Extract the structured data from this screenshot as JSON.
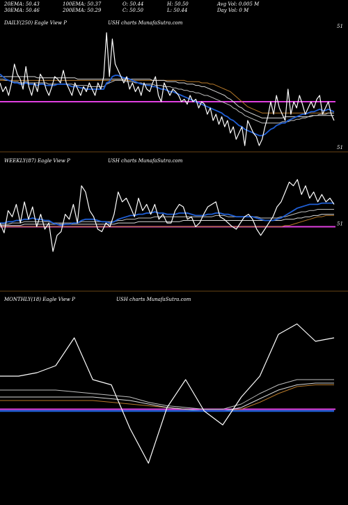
{
  "header": {
    "line1": [
      {
        "label": "20EMA: 50.43"
      },
      {
        "label": "100EMA: 50.37"
      },
      {
        "label": "O: 50.44"
      },
      {
        "label": "H: 50.50"
      },
      {
        "label": "Avg Vol: 0.005 M"
      }
    ],
    "line2": [
      {
        "label": "30EMA: 50.46"
      },
      {
        "label": "200EMA: 50.29"
      },
      {
        "label": "C: 50.50"
      },
      {
        "label": "L: 50.44"
      },
      {
        "label": "Day Vol: 0  M"
      }
    ]
  },
  "colors": {
    "price": "#ffffff",
    "ema_short": "#1f5fd6",
    "ema_mid": "#bfbfbf",
    "ema_long": "#d9d9d9",
    "ema_200": "#b87a2a",
    "baseline": "#e040e0",
    "separator": "#8a5a1a",
    "text": "#ffffff"
  },
  "chart_data": [
    {
      "type": "line",
      "title_left": "DAILY(250) Eagle   View  P",
      "title_right": "USH charts MunafaSutra.com",
      "right_tick_labels": [
        "51",
        "51"
      ],
      "price": [
        0.55,
        0.48,
        0.52,
        0.45,
        0.55,
        0.7,
        0.62,
        0.58,
        0.5,
        0.68,
        0.52,
        0.45,
        0.55,
        0.48,
        0.62,
        0.58,
        0.5,
        0.45,
        0.52,
        0.6,
        0.58,
        0.55,
        0.65,
        0.55,
        0.5,
        0.45,
        0.55,
        0.5,
        0.45,
        0.52,
        0.48,
        0.55,
        0.5,
        0.45,
        0.55,
        0.5,
        0.6,
        0.95,
        0.6,
        0.9,
        0.7,
        0.65,
        0.6,
        0.55,
        0.6,
        0.5,
        0.55,
        0.48,
        0.52,
        0.45,
        0.55,
        0.5,
        0.48,
        0.55,
        0.6,
        0.45,
        0.4,
        0.55,
        0.5,
        0.45,
        0.5,
        0.48,
        0.45,
        0.4,
        0.42,
        0.38,
        0.45,
        0.4,
        0.42,
        0.35,
        0.4,
        0.38,
        0.3,
        0.35,
        0.25,
        0.3,
        0.22,
        0.28,
        0.2,
        0.25,
        0.15,
        0.2,
        0.1,
        0.15,
        0.2,
        0.05,
        0.25,
        0.2,
        0.15,
        0.12,
        0.05,
        0.1,
        0.2,
        0.28,
        0.4,
        0.3,
        0.45,
        0.35,
        0.3,
        0.25,
        0.5,
        0.3,
        0.4,
        0.35,
        0.45,
        0.38,
        0.3,
        0.35,
        0.4,
        0.35,
        0.42,
        0.45,
        0.3,
        0.35,
        0.4,
        0.3,
        0.25
      ],
      "ema_short": [
        0.62,
        0.6,
        0.58,
        0.57,
        0.56,
        0.55,
        0.55,
        0.54,
        0.54,
        0.55,
        0.54,
        0.54,
        0.54,
        0.53,
        0.54,
        0.54,
        0.53,
        0.53,
        0.53,
        0.53,
        0.54,
        0.54,
        0.54,
        0.54,
        0.53,
        0.52,
        0.52,
        0.52,
        0.51,
        0.51,
        0.5,
        0.5,
        0.5,
        0.5,
        0.5,
        0.5,
        0.5,
        0.55,
        0.56,
        0.6,
        0.61,
        0.61,
        0.6,
        0.59,
        0.59,
        0.58,
        0.57,
        0.56,
        0.55,
        0.54,
        0.54,
        0.53,
        0.53,
        0.52,
        0.52,
        0.51,
        0.5,
        0.5,
        0.49,
        0.48,
        0.48,
        0.47,
        0.46,
        0.45,
        0.44,
        0.43,
        0.42,
        0.41,
        0.4,
        0.39,
        0.38,
        0.37,
        0.36,
        0.35,
        0.34,
        0.33,
        0.32,
        0.31,
        0.29,
        0.28,
        0.26,
        0.25,
        0.23,
        0.21,
        0.2,
        0.18,
        0.17,
        0.16,
        0.15,
        0.14,
        0.13,
        0.13,
        0.14,
        0.16,
        0.18,
        0.19,
        0.21,
        0.22,
        0.23,
        0.23,
        0.25,
        0.26,
        0.27,
        0.28,
        0.29,
        0.3,
        0.3,
        0.31,
        0.32,
        0.32,
        0.33,
        0.34,
        0.33,
        0.33,
        0.34,
        0.33,
        0.32
      ],
      "ema_mid": [
        0.58,
        0.58,
        0.57,
        0.57,
        0.56,
        0.56,
        0.56,
        0.55,
        0.55,
        0.56,
        0.55,
        0.55,
        0.55,
        0.55,
        0.55,
        0.55,
        0.55,
        0.54,
        0.54,
        0.54,
        0.54,
        0.54,
        0.54,
        0.54,
        0.54,
        0.54,
        0.53,
        0.53,
        0.53,
        0.53,
        0.53,
        0.52,
        0.52,
        0.52,
        0.52,
        0.52,
        0.52,
        0.54,
        0.55,
        0.56,
        0.57,
        0.57,
        0.57,
        0.57,
        0.56,
        0.56,
        0.56,
        0.55,
        0.55,
        0.55,
        0.54,
        0.54,
        0.54,
        0.54,
        0.53,
        0.53,
        0.53,
        0.52,
        0.52,
        0.52,
        0.51,
        0.51,
        0.5,
        0.5,
        0.49,
        0.49,
        0.48,
        0.48,
        0.47,
        0.47,
        0.46,
        0.45,
        0.45,
        0.44,
        0.43,
        0.42,
        0.41,
        0.4,
        0.39,
        0.38,
        0.37,
        0.35,
        0.34,
        0.32,
        0.31,
        0.29,
        0.28,
        0.27,
        0.26,
        0.25,
        0.24,
        0.23,
        0.23,
        0.23,
        0.23,
        0.23,
        0.23,
        0.23,
        0.24,
        0.24,
        0.24,
        0.25,
        0.25,
        0.26,
        0.26,
        0.27,
        0.27,
        0.28,
        0.28,
        0.29,
        0.29,
        0.3,
        0.3,
        0.3,
        0.31,
        0.31,
        0.31
      ],
      "ema_long": [
        0.6,
        0.6,
        0.6,
        0.6,
        0.6,
        0.6,
        0.6,
        0.6,
        0.6,
        0.6,
        0.6,
        0.6,
        0.6,
        0.59,
        0.59,
        0.59,
        0.59,
        0.59,
        0.59,
        0.59,
        0.59,
        0.59,
        0.59,
        0.59,
        0.59,
        0.59,
        0.59,
        0.58,
        0.58,
        0.58,
        0.58,
        0.58,
        0.58,
        0.58,
        0.58,
        0.58,
        0.58,
        0.58,
        0.58,
        0.58,
        0.58,
        0.58,
        0.58,
        0.58,
        0.58,
        0.58,
        0.58,
        0.58,
        0.58,
        0.58,
        0.58,
        0.58,
        0.58,
        0.57,
        0.57,
        0.57,
        0.57,
        0.57,
        0.56,
        0.56,
        0.56,
        0.56,
        0.55,
        0.55,
        0.55,
        0.54,
        0.54,
        0.54,
        0.53,
        0.53,
        0.52,
        0.52,
        0.51,
        0.5,
        0.49,
        0.48,
        0.47,
        0.46,
        0.45,
        0.43,
        0.42,
        0.4,
        0.38,
        0.36,
        0.35,
        0.33,
        0.32,
        0.31,
        0.3,
        0.29,
        0.28,
        0.27,
        0.27,
        0.27,
        0.27,
        0.27,
        0.27,
        0.27,
        0.27,
        0.28,
        0.28,
        0.28,
        0.28,
        0.28,
        0.28,
        0.28,
        0.28,
        0.28,
        0.29,
        0.29,
        0.29,
        0.29,
        0.29,
        0.29,
        0.29,
        0.29,
        0.29
      ],
      "ema_200": [
        0.57,
        0.57,
        0.57,
        0.57,
        0.57,
        0.57,
        0.57,
        0.57,
        0.57,
        0.57,
        0.57,
        0.57,
        0.57,
        0.57,
        0.57,
        0.57,
        0.57,
        0.57,
        0.57,
        0.57,
        0.57,
        0.57,
        0.57,
        0.57,
        0.57,
        0.57,
        0.57,
        0.57,
        0.57,
        0.57,
        0.57,
        0.57,
        0.57,
        0.57,
        0.57,
        0.57,
        0.57,
        0.57,
        0.57,
        0.57,
        0.57,
        0.57,
        0.57,
        0.57,
        0.57,
        0.57,
        0.57,
        0.57,
        0.57,
        0.57,
        0.57,
        0.57,
        0.57,
        0.57,
        0.57,
        0.57,
        0.57,
        0.57,
        0.57,
        0.57,
        0.57,
        0.57,
        0.57,
        0.57,
        0.57,
        0.56,
        0.56,
        0.56,
        0.56,
        0.56,
        0.55,
        0.55,
        0.55,
        0.54,
        0.54,
        0.53,
        0.52,
        0.51,
        0.5,
        0.49,
        0.48,
        0.46,
        0.44,
        0.42,
        0.4,
        0.38,
        0.36,
        0.35,
        0.34,
        0.33,
        0.32,
        0.31,
        0.31,
        0.31,
        0.31,
        0.31,
        0.31,
        0.31,
        0.31,
        0.31,
        0.31,
        0.31,
        0.31,
        0.31,
        0.31,
        0.31,
        0.31,
        0.31,
        0.31,
        0.31,
        0.31,
        0.31,
        0.31,
        0.31,
        0.31,
        0.31,
        0.31
      ],
      "baseline": 0.4,
      "ylim": [
        0,
        1
      ]
    },
    {
      "type": "line",
      "title_left": "WEEKLY(87) Eagle   View  P",
      "title_right": "USH charts MunafaSutra.com",
      "right_tick_labels": [
        "51"
      ],
      "price": [
        0.55,
        0.47,
        0.65,
        0.6,
        0.7,
        0.55,
        0.72,
        0.58,
        0.68,
        0.52,
        0.62,
        0.5,
        0.55,
        0.32,
        0.45,
        0.48,
        0.62,
        0.58,
        0.7,
        0.55,
        0.85,
        0.8,
        0.65,
        0.6,
        0.5,
        0.48,
        0.55,
        0.52,
        0.62,
        0.8,
        0.72,
        0.75,
        0.68,
        0.6,
        0.75,
        0.65,
        0.7,
        0.62,
        0.7,
        0.58,
        0.62,
        0.55,
        0.55,
        0.65,
        0.7,
        0.68,
        0.58,
        0.6,
        0.52,
        0.55,
        0.62,
        0.68,
        0.7,
        0.72,
        0.6,
        0.58,
        0.55,
        0.52,
        0.5,
        0.55,
        0.6,
        0.62,
        0.58,
        0.5,
        0.45,
        0.5,
        0.55,
        0.6,
        0.68,
        0.72,
        0.8,
        0.88,
        0.85,
        0.9,
        0.78,
        0.85,
        0.75,
        0.8,
        0.72,
        0.78,
        0.72,
        0.75,
        0.7
      ],
      "ema_short": [
        0.55,
        0.55,
        0.56,
        0.56,
        0.57,
        0.57,
        0.58,
        0.58,
        0.59,
        0.58,
        0.58,
        0.57,
        0.57,
        0.55,
        0.54,
        0.53,
        0.54,
        0.54,
        0.55,
        0.55,
        0.57,
        0.58,
        0.58,
        0.58,
        0.57,
        0.56,
        0.56,
        0.55,
        0.56,
        0.58,
        0.59,
        0.6,
        0.61,
        0.61,
        0.62,
        0.62,
        0.63,
        0.63,
        0.64,
        0.63,
        0.63,
        0.62,
        0.62,
        0.62,
        0.63,
        0.63,
        0.63,
        0.62,
        0.61,
        0.61,
        0.61,
        0.62,
        0.62,
        0.63,
        0.63,
        0.62,
        0.62,
        0.61,
        0.6,
        0.6,
        0.6,
        0.6,
        0.6,
        0.59,
        0.58,
        0.57,
        0.57,
        0.57,
        0.58,
        0.59,
        0.61,
        0.63,
        0.65,
        0.67,
        0.68,
        0.69,
        0.7,
        0.7,
        0.7,
        0.71,
        0.71,
        0.71,
        0.71
      ],
      "ema_mid": [
        0.54,
        0.54,
        0.54,
        0.55,
        0.55,
        0.55,
        0.56,
        0.56,
        0.56,
        0.56,
        0.56,
        0.56,
        0.56,
        0.55,
        0.55,
        0.55,
        0.55,
        0.55,
        0.55,
        0.55,
        0.56,
        0.56,
        0.56,
        0.56,
        0.56,
        0.56,
        0.56,
        0.56,
        0.56,
        0.57,
        0.57,
        0.58,
        0.58,
        0.58,
        0.59,
        0.59,
        0.59,
        0.59,
        0.6,
        0.6,
        0.6,
        0.6,
        0.6,
        0.6,
        0.6,
        0.6,
        0.6,
        0.6,
        0.6,
        0.6,
        0.6,
        0.6,
        0.6,
        0.61,
        0.61,
        0.61,
        0.6,
        0.6,
        0.6,
        0.6,
        0.6,
        0.6,
        0.6,
        0.6,
        0.59,
        0.59,
        0.59,
        0.59,
        0.59,
        0.6,
        0.6,
        0.61,
        0.62,
        0.63,
        0.64,
        0.64,
        0.65,
        0.65,
        0.66,
        0.66,
        0.66,
        0.66,
        0.66
      ],
      "ema_long": [
        0.53,
        0.53,
        0.53,
        0.53,
        0.53,
        0.53,
        0.54,
        0.54,
        0.54,
        0.54,
        0.54,
        0.54,
        0.54,
        0.54,
        0.54,
        0.54,
        0.54,
        0.54,
        0.54,
        0.54,
        0.54,
        0.54,
        0.54,
        0.54,
        0.54,
        0.54,
        0.54,
        0.54,
        0.54,
        0.55,
        0.55,
        0.55,
        0.55,
        0.55,
        0.56,
        0.56,
        0.56,
        0.56,
        0.56,
        0.56,
        0.56,
        0.56,
        0.56,
        0.56,
        0.56,
        0.57,
        0.57,
        0.57,
        0.57,
        0.57,
        0.57,
        0.57,
        0.57,
        0.57,
        0.57,
        0.57,
        0.57,
        0.57,
        0.57,
        0.57,
        0.57,
        0.57,
        0.57,
        0.57,
        0.57,
        0.57,
        0.57,
        0.57,
        0.57,
        0.57,
        0.58,
        0.58,
        0.58,
        0.59,
        0.59,
        0.6,
        0.6,
        0.61,
        0.61,
        0.62,
        0.62,
        0.62,
        0.62
      ],
      "ema_200": [
        0.52,
        0.52,
        0.52,
        0.52,
        0.52,
        0.52,
        0.52,
        0.52,
        0.52,
        0.52,
        0.52,
        0.52,
        0.52,
        0.52,
        0.52,
        0.52,
        0.52,
        0.52,
        0.52,
        0.52,
        0.52,
        0.52,
        0.52,
        0.52,
        0.52,
        0.52,
        0.52,
        0.52,
        0.52,
        0.52,
        0.52,
        0.52,
        0.52,
        0.52,
        0.52,
        0.52,
        0.52,
        0.52,
        0.52,
        0.52,
        0.52,
        0.52,
        0.52,
        0.52,
        0.52,
        0.52,
        0.52,
        0.52,
        0.52,
        0.52,
        0.52,
        0.52,
        0.52,
        0.52,
        0.52,
        0.52,
        0.52,
        0.52,
        0.52,
        0.52,
        0.52,
        0.52,
        0.52,
        0.52,
        0.52,
        0.52,
        0.52,
        0.52,
        0.52,
        0.52,
        0.53,
        0.53,
        0.54,
        0.55,
        0.56,
        0.57,
        0.58,
        0.59,
        0.6,
        0.6,
        0.61,
        0.61,
        0.61
      ],
      "baseline": 0.52,
      "ylim": [
        0,
        1
      ]
    },
    {
      "type": "line",
      "title_left": "MONTHLY(18) Eagle   View  P",
      "title_right": "USH charts MunafaSutra.com",
      "right_tick_labels": [],
      "price": [
        0.6,
        0.6,
        0.62,
        0.66,
        0.82,
        0.58,
        0.55,
        0.3,
        0.1,
        0.42,
        0.58,
        0.4,
        0.32,
        0.48,
        0.6,
        0.84,
        0.9,
        0.8,
        0.82
      ],
      "ema_short": [
        0.4,
        0.4,
        0.4,
        0.4,
        0.4,
        0.4,
        0.4,
        0.4,
        0.4,
        0.4,
        0.4,
        0.4,
        0.4,
        0.4,
        0.4,
        0.4,
        0.4,
        0.4,
        0.4
      ],
      "ema_mid": [
        0.52,
        0.52,
        0.52,
        0.52,
        0.51,
        0.5,
        0.49,
        0.48,
        0.45,
        0.43,
        0.42,
        0.41,
        0.41,
        0.44,
        0.5,
        0.55,
        0.58,
        0.58,
        0.58
      ],
      "ema_long": [
        0.48,
        0.48,
        0.48,
        0.48,
        0.48,
        0.48,
        0.47,
        0.46,
        0.44,
        0.42,
        0.41,
        0.4,
        0.4,
        0.42,
        0.47,
        0.52,
        0.55,
        0.56,
        0.56
      ],
      "ema_200": [
        0.46,
        0.46,
        0.46,
        0.46,
        0.46,
        0.46,
        0.45,
        0.44,
        0.43,
        0.42,
        0.41,
        0.4,
        0.4,
        0.41,
        0.45,
        0.5,
        0.54,
        0.55,
        0.55
      ],
      "baseline": 0.41,
      "ylim": [
        0,
        1
      ]
    }
  ]
}
